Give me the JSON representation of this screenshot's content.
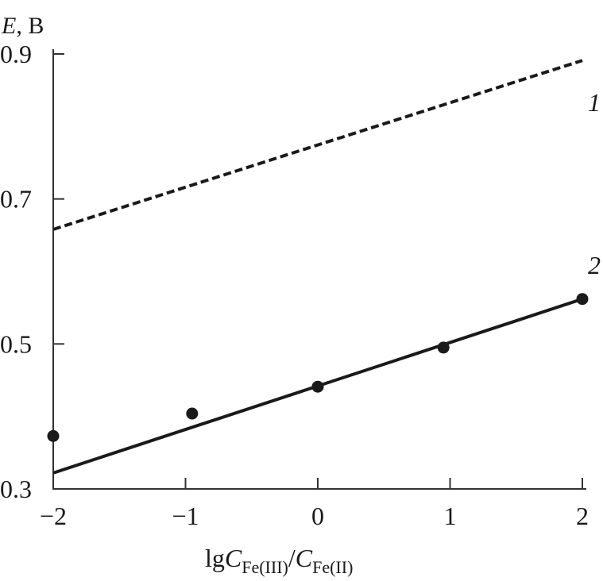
{
  "chart_data": {
    "type": "line",
    "ylabel_var": "E",
    "ylabel_unit": ", В",
    "xlabel": {
      "prefix": "lg",
      "num_var": "C",
      "num_sub": "Fe(III)",
      "slash": "/",
      "den_var": "C",
      "den_sub": "Fe(II)"
    },
    "xlim": [
      -2,
      2
    ],
    "ylim": [
      0.3,
      0.9
    ],
    "xticks": [
      -2,
      -1,
      0,
      1,
      2
    ],
    "xtick_labels": [
      "−2",
      "−1",
      "0",
      "1",
      "2"
    ],
    "yticks": [
      0.3,
      0.5,
      0.7,
      0.9
    ],
    "ytick_labels": [
      "0.3",
      "0.5",
      "0.7",
      "0.9"
    ],
    "grid": false,
    "series": [
      {
        "name": "1",
        "style": "dashed",
        "x": [
          -2,
          2
        ],
        "y": [
          0.658,
          0.891
        ]
      },
      {
        "name": "2",
        "style": "solid",
        "x": [
          -2,
          2
        ],
        "y": [
          0.322,
          0.562
        ],
        "points": {
          "x": [
            -2,
            -0.95,
            0,
            0.95,
            2
          ],
          "y": [
            0.373,
            0.404,
            0.441,
            0.495,
            0.562
          ]
        }
      }
    ],
    "labels": [
      "1",
      "2"
    ],
    "color": "#1a1a1a"
  }
}
